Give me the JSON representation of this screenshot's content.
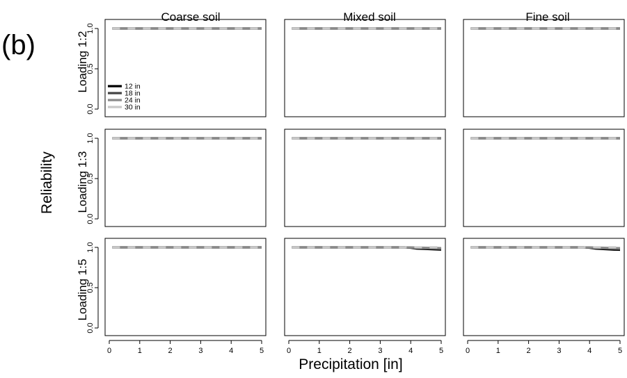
{
  "panel_tag": "(b)",
  "columns": [
    "Coarse soil",
    "Mixed soil",
    "Fine soil"
  ],
  "rows": [
    "Loading 1:2",
    "Loading 1:3",
    "Loading 1:5"
  ],
  "xlabel": "Precipitation [in]",
  "ylabel": "Reliability",
  "x_ticks": [
    "0",
    "1",
    "2",
    "3",
    "4",
    "5"
  ],
  "y_ticks": [
    "0.0",
    "0.5",
    "1.0"
  ],
  "legend": {
    "panel": "Coarse soil / Loading 1:2",
    "entries": [
      "12 in",
      "18 in",
      "24 in",
      "30 in"
    ]
  },
  "chart_data": {
    "type": "line",
    "layout": "3x3 facet grid",
    "xlim": [
      0,
      5
    ],
    "ylim": [
      0,
      1
    ],
    "x_axis_only_on_bottom_row": true,
    "y_axis_only_on_left_column": true,
    "series_styles": [
      {
        "name": "12 in",
        "color": "#000000",
        "dash": "solid",
        "width": 3.2
      },
      {
        "name": "18 in",
        "color": "#444444",
        "dash": "solid",
        "width": 3.2
      },
      {
        "name": "24 in",
        "color": "#8a8a8a",
        "dash": "solid",
        "width": 3.2
      },
      {
        "name": "30 in",
        "color": "#c8c8c8",
        "dash": "solid",
        "width": 3.2
      }
    ],
    "x": [
      0.1,
      0.5,
      1,
      1.5,
      2,
      2.5,
      3,
      3.5,
      3.8,
      4,
      4.2,
      4.5,
      4.8,
      5
    ],
    "panels": [
      {
        "row": "Loading 1:2",
        "column": "Coarse soil",
        "series": [
          {
            "name": "12 in",
            "values": [
              1,
              1,
              1,
              1,
              1,
              1,
              1,
              1,
              1,
              1,
              1,
              1,
              1,
              1
            ]
          },
          {
            "name": "18 in",
            "values": [
              1,
              1,
              1,
              1,
              1,
              1,
              1,
              1,
              1,
              1,
              1,
              1,
              1,
              1
            ]
          },
          {
            "name": "24 in",
            "values": [
              1,
              1,
              1,
              1,
              1,
              1,
              1,
              1,
              1,
              1,
              1,
              1,
              1,
              1
            ]
          },
          {
            "name": "30 in",
            "values": [
              1,
              1,
              1,
              1,
              1,
              1,
              1,
              1,
              1,
              1,
              1,
              1,
              1,
              1
            ]
          }
        ]
      },
      {
        "row": "Loading 1:2",
        "column": "Mixed soil",
        "series": [
          {
            "name": "12 in",
            "values": [
              1,
              1,
              1,
              1,
              1,
              1,
              1,
              1,
              1,
              1,
              1,
              1,
              1,
              1
            ]
          },
          {
            "name": "18 in",
            "values": [
              1,
              1,
              1,
              1,
              1,
              1,
              1,
              1,
              1,
              1,
              1,
              1,
              1,
              1
            ]
          },
          {
            "name": "24 in",
            "values": [
              1,
              1,
              1,
              1,
              1,
              1,
              1,
              1,
              1,
              1,
              1,
              1,
              1,
              1
            ]
          },
          {
            "name": "30 in",
            "values": [
              1,
              1,
              1,
              1,
              1,
              1,
              1,
              1,
              1,
              1,
              1,
              1,
              1,
              1
            ]
          }
        ]
      },
      {
        "row": "Loading 1:2",
        "column": "Fine soil",
        "series": [
          {
            "name": "12 in",
            "values": [
              1,
              1,
              1,
              1,
              1,
              1,
              1,
              1,
              1,
              1,
              1,
              1,
              1,
              1
            ]
          },
          {
            "name": "18 in",
            "values": [
              1,
              1,
              1,
              1,
              1,
              1,
              1,
              1,
              1,
              1,
              1,
              1,
              1,
              1
            ]
          },
          {
            "name": "24 in",
            "values": [
              1,
              1,
              1,
              1,
              1,
              1,
              1,
              1,
              1,
              1,
              1,
              1,
              1,
              1
            ]
          },
          {
            "name": "30 in",
            "values": [
              1,
              1,
              1,
              1,
              1,
              1,
              1,
              1,
              1,
              1,
              1,
              1,
              1,
              1
            ]
          }
        ]
      },
      {
        "row": "Loading 1:3",
        "column": "Coarse soil",
        "series": [
          {
            "name": "12 in",
            "values": [
              1,
              1,
              1,
              1,
              1,
              1,
              1,
              1,
              1,
              1,
              1,
              1,
              1,
              1
            ]
          },
          {
            "name": "18 in",
            "values": [
              1,
              1,
              1,
              1,
              1,
              1,
              1,
              1,
              1,
              1,
              1,
              1,
              1,
              1
            ]
          },
          {
            "name": "24 in",
            "values": [
              1,
              1,
              1,
              1,
              1,
              1,
              1,
              1,
              1,
              1,
              1,
              1,
              1,
              1
            ]
          },
          {
            "name": "30 in",
            "values": [
              1,
              1,
              1,
              1,
              1,
              1,
              1,
              1,
              1,
              1,
              1,
              1,
              1,
              1
            ]
          }
        ]
      },
      {
        "row": "Loading 1:3",
        "column": "Mixed soil",
        "series": [
          {
            "name": "12 in",
            "values": [
              1,
              1,
              1,
              1,
              1,
              1,
              1,
              1,
              1,
              1,
              1,
              1,
              1,
              1
            ]
          },
          {
            "name": "18 in",
            "values": [
              1,
              1,
              1,
              1,
              1,
              1,
              1,
              1,
              1,
              1,
              1,
              1,
              1,
              1
            ]
          },
          {
            "name": "24 in",
            "values": [
              1,
              1,
              1,
              1,
              1,
              1,
              1,
              1,
              1,
              1,
              1,
              1,
              1,
              1
            ]
          },
          {
            "name": "30 in",
            "values": [
              1,
              1,
              1,
              1,
              1,
              1,
              1,
              1,
              1,
              1,
              1,
              1,
              1,
              1
            ]
          }
        ]
      },
      {
        "row": "Loading 1:3",
        "column": "Fine soil",
        "series": [
          {
            "name": "12 in",
            "values": [
              1,
              1,
              1,
              1,
              1,
              1,
              1,
              1,
              1,
              1,
              1,
              1,
              1,
              1
            ]
          },
          {
            "name": "18 in",
            "values": [
              1,
              1,
              1,
              1,
              1,
              1,
              1,
              1,
              1,
              1,
              1,
              1,
              1,
              1
            ]
          },
          {
            "name": "24 in",
            "values": [
              1,
              1,
              1,
              1,
              1,
              1,
              1,
              1,
              1,
              1,
              1,
              1,
              1,
              1
            ]
          },
          {
            "name": "30 in",
            "values": [
              1,
              1,
              1,
              1,
              1,
              1,
              1,
              1,
              1,
              1,
              1,
              1,
              1,
              1
            ]
          }
        ]
      },
      {
        "row": "Loading 1:5",
        "column": "Coarse soil",
        "series": [
          {
            "name": "12 in",
            "values": [
              1,
              1,
              1,
              1,
              1,
              1,
              1,
              1,
              1,
              1,
              1,
              1,
              1,
              1
            ]
          },
          {
            "name": "18 in",
            "values": [
              1,
              1,
              1,
              1,
              1,
              1,
              1,
              1,
              1,
              1,
              1,
              1,
              1,
              1
            ]
          },
          {
            "name": "24 in",
            "values": [
              1,
              1,
              1,
              1,
              1,
              1,
              1,
              1,
              1,
              1,
              1,
              1,
              1,
              1
            ]
          },
          {
            "name": "30 in",
            "values": [
              1,
              1,
              1,
              1,
              1,
              1,
              1,
              1,
              1,
              1,
              1,
              1,
              1,
              1
            ]
          }
        ]
      },
      {
        "row": "Loading 1:5",
        "column": "Mixed soil",
        "series": [
          {
            "name": "12 in",
            "values": [
              1,
              1,
              1,
              1,
              1,
              1,
              1,
              1,
              1,
              0.995,
              0.985,
              0.98,
              0.975,
              0.972
            ]
          },
          {
            "name": "18 in",
            "values": [
              1,
              1,
              1,
              1,
              1,
              1,
              1,
              1,
              1,
              0.998,
              0.992,
              0.988,
              0.985,
              0.982
            ]
          },
          {
            "name": "24 in",
            "values": [
              1,
              1,
              1,
              1,
              1,
              1,
              1,
              1,
              1,
              1,
              0.998,
              0.995,
              0.993,
              0.99
            ]
          },
          {
            "name": "30 in",
            "values": [
              1,
              1,
              1,
              1,
              1,
              1,
              1,
              1,
              1,
              1,
              1,
              1,
              1,
              1
            ]
          }
        ]
      },
      {
        "row": "Loading 1:5",
        "column": "Fine soil",
        "series": [
          {
            "name": "12 in",
            "values": [
              1,
              1,
              1,
              1,
              1,
              1,
              1,
              1,
              1,
              0.995,
              0.985,
              0.978,
              0.972,
              0.97
            ]
          },
          {
            "name": "18 in",
            "values": [
              1,
              1,
              1,
              1,
              1,
              1,
              1,
              1,
              1,
              0.998,
              0.992,
              0.987,
              0.983,
              0.98
            ]
          },
          {
            "name": "24 in",
            "values": [
              1,
              1,
              1,
              1,
              1,
              1,
              1,
              1,
              1,
              1,
              0.998,
              0.995,
              0.992,
              0.99
            ]
          },
          {
            "name": "30 in",
            "values": [
              1,
              1,
              1,
              1,
              1,
              1,
              1,
              1,
              1,
              1,
              1,
              1,
              1,
              1
            ]
          }
        ]
      }
    ]
  }
}
